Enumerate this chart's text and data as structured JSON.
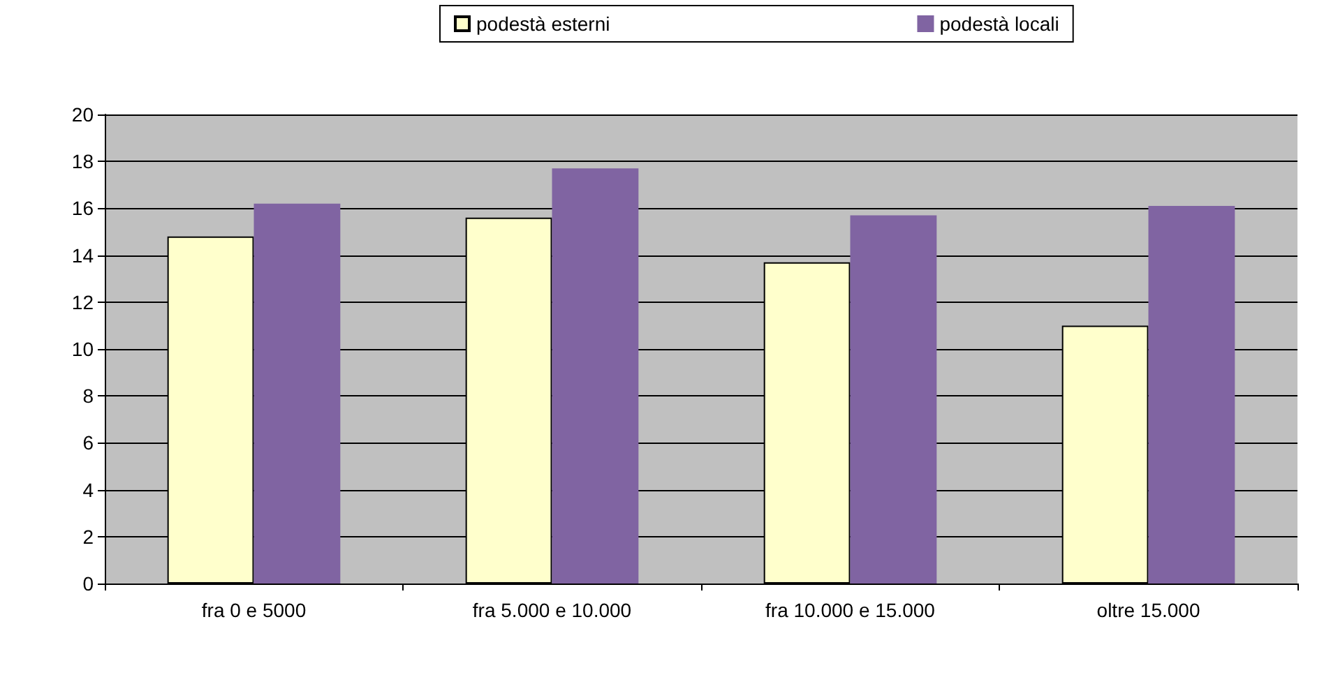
{
  "chart_data": {
    "type": "bar",
    "categories": [
      "fra 0 e 5000",
      "fra 5.000 e 10.000",
      "fra 10.000 e 15.000",
      "oltre 15.000"
    ],
    "series": [
      {
        "name": "podestà esterni",
        "color": "#ffffcc",
        "values": [
          14.8,
          15.6,
          13.7,
          11.0
        ]
      },
      {
        "name": "podestà locali",
        "color": "#8064a2",
        "values": [
          16.2,
          17.7,
          15.7,
          16.1
        ]
      }
    ],
    "ylim": [
      0,
      20
    ],
    "yticks": [
      0,
      2,
      4,
      6,
      8,
      10,
      12,
      14,
      16,
      18,
      20
    ],
    "grid": "y",
    "legend": "top right"
  }
}
